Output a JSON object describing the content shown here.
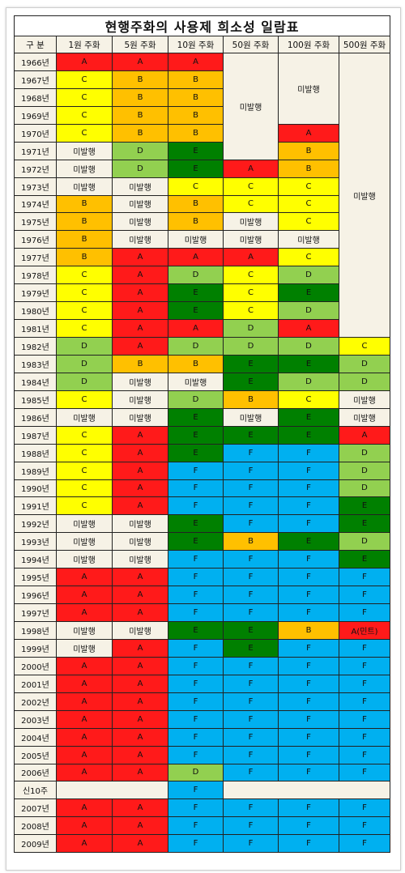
{
  "title": "현행주화의 사용제 희소성 일람표",
  "headers": [
    "구 분",
    "1원 주화",
    "5원 주화",
    "10원 주화",
    "50원 주화",
    "100원 주화",
    "500원 주화"
  ],
  "colors": {
    "A": "#ff1a1a",
    "B": "#ffc000",
    "C": "#ffff00",
    "D": "#92d050",
    "E": "#008000",
    "F": "#00b0f0",
    "none": "#f6f2e6"
  },
  "rows": [
    {
      "year": "1966년",
      "cells": [
        "A",
        "A",
        "A"
      ]
    },
    {
      "year": "1967년",
      "cells": [
        "C",
        "B",
        "B"
      ]
    },
    {
      "year": "1968년",
      "cells": [
        "C",
        "B",
        "B"
      ]
    },
    {
      "year": "1969년",
      "cells": [
        "C",
        "B",
        "B"
      ]
    },
    {
      "year": "1970년",
      "cells": [
        "C",
        "B",
        "B",
        "A"
      ]
    },
    {
      "year": "1971년",
      "cells": [
        "미발행",
        "D",
        "E",
        "B"
      ]
    },
    {
      "year": "1972년",
      "cells": [
        "미발행",
        "D",
        "E",
        "A",
        "B"
      ]
    },
    {
      "year": "1973년",
      "cells": [
        "미발행",
        "미발행",
        "C",
        "C",
        "C"
      ]
    },
    {
      "year": "1974년",
      "cells": [
        "B",
        "미발행",
        "B",
        "C",
        "C"
      ]
    },
    {
      "year": "1975년",
      "cells": [
        "B",
        "미발행",
        "B",
        "미발행",
        "C"
      ]
    },
    {
      "year": "1976년",
      "cells": [
        "B",
        "미발행",
        "미발행",
        "미발행",
        "미발행"
      ]
    },
    {
      "year": "1977년",
      "cells": [
        "B",
        "A",
        "A",
        "A",
        "C"
      ]
    },
    {
      "year": "1978년",
      "cells": [
        "C",
        "A",
        "D",
        "C",
        "D"
      ]
    },
    {
      "year": "1979년",
      "cells": [
        "C",
        "A",
        "E",
        "C",
        "E"
      ]
    },
    {
      "year": "1980년",
      "cells": [
        "C",
        "A",
        "E",
        "C",
        "D"
      ]
    },
    {
      "year": "1981년",
      "cells": [
        "C",
        "A",
        "A",
        "D",
        "A"
      ]
    },
    {
      "year": "1982년",
      "cells": [
        "D",
        "A",
        "D",
        "D",
        "D",
        "C"
      ]
    },
    {
      "year": "1983년",
      "cells": [
        "D",
        "B",
        "B",
        "E",
        "E",
        "D"
      ]
    },
    {
      "year": "1984년",
      "cells": [
        "D",
        "미발행",
        "미발행",
        "E",
        "D",
        "D"
      ]
    },
    {
      "year": "1985년",
      "cells": [
        "C",
        "미발행",
        "D",
        "B",
        "C",
        "미발행"
      ]
    },
    {
      "year": "1986년",
      "cells": [
        "미발행",
        "미발행",
        "E",
        "미발행",
        "E",
        "미발행"
      ]
    },
    {
      "year": "1987년",
      "cells": [
        "C",
        "A",
        "E",
        "E",
        "E",
        "A"
      ]
    },
    {
      "year": "1988년",
      "cells": [
        "C",
        "A",
        "E",
        "F",
        "F",
        "D"
      ]
    },
    {
      "year": "1989년",
      "cells": [
        "C",
        "A",
        "F",
        "F",
        "F",
        "D"
      ]
    },
    {
      "year": "1990년",
      "cells": [
        "C",
        "A",
        "F",
        "F",
        "F",
        "D"
      ]
    },
    {
      "year": "1991년",
      "cells": [
        "C",
        "A",
        "F",
        "F",
        "F",
        "E"
      ]
    },
    {
      "year": "1992년",
      "cells": [
        "미발행",
        "미발행",
        "E",
        "F",
        "F",
        "E"
      ]
    },
    {
      "year": "1993년",
      "cells": [
        "미발행",
        "미발행",
        "E",
        "B",
        "E",
        "D"
      ]
    },
    {
      "year": "1994년",
      "cells": [
        "미발행",
        "미발행",
        "F",
        "F",
        "F",
        "E"
      ]
    },
    {
      "year": "1995년",
      "cells": [
        "A",
        "A",
        "F",
        "F",
        "F",
        "F"
      ]
    },
    {
      "year": "1996년",
      "cells": [
        "A",
        "A",
        "F",
        "F",
        "F",
        "F"
      ]
    },
    {
      "year": "1997년",
      "cells": [
        "A",
        "A",
        "F",
        "F",
        "F",
        "F"
      ]
    },
    {
      "year": "1998년",
      "cells": [
        "미발행",
        "미발행",
        "E",
        "E",
        "B",
        "A(민트)"
      ]
    },
    {
      "year": "1999년",
      "cells": [
        "미발행",
        "A",
        "F",
        "E",
        "F",
        "F"
      ]
    },
    {
      "year": "2000년",
      "cells": [
        "A",
        "A",
        "F",
        "F",
        "F",
        "F"
      ]
    },
    {
      "year": "2001년",
      "cells": [
        "A",
        "A",
        "F",
        "F",
        "F",
        "F"
      ]
    },
    {
      "year": "2002년",
      "cells": [
        "A",
        "A",
        "F",
        "F",
        "F",
        "F"
      ]
    },
    {
      "year": "2003년",
      "cells": [
        "A",
        "A",
        "F",
        "F",
        "F",
        "F"
      ]
    },
    {
      "year": "2004년",
      "cells": [
        "A",
        "A",
        "F",
        "F",
        "F",
        "F"
      ]
    },
    {
      "year": "2005년",
      "cells": [
        "A",
        "A",
        "F",
        "F",
        "F",
        "F"
      ]
    },
    {
      "year": "2006년",
      "cells": [
        "A",
        "A",
        "D",
        "F",
        "F",
        "F"
      ]
    },
    {
      "year": "신10주",
      "cells": [
        "",
        "F",
        ""
      ]
    },
    {
      "year": "2007년",
      "cells": [
        "A",
        "A",
        "F",
        "F",
        "F",
        "F"
      ]
    },
    {
      "year": "2008년",
      "cells": [
        "A",
        "A",
        "F",
        "F",
        "F",
        "F"
      ]
    },
    {
      "year": "2009년",
      "cells": [
        "A",
        "A",
        "F",
        "F",
        "F",
        "F"
      ]
    }
  ],
  "merged": {
    "c50_1966_1971": "미발행",
    "c100_1966_1969": "미발행",
    "c500_1966_1981": "미발행"
  }
}
